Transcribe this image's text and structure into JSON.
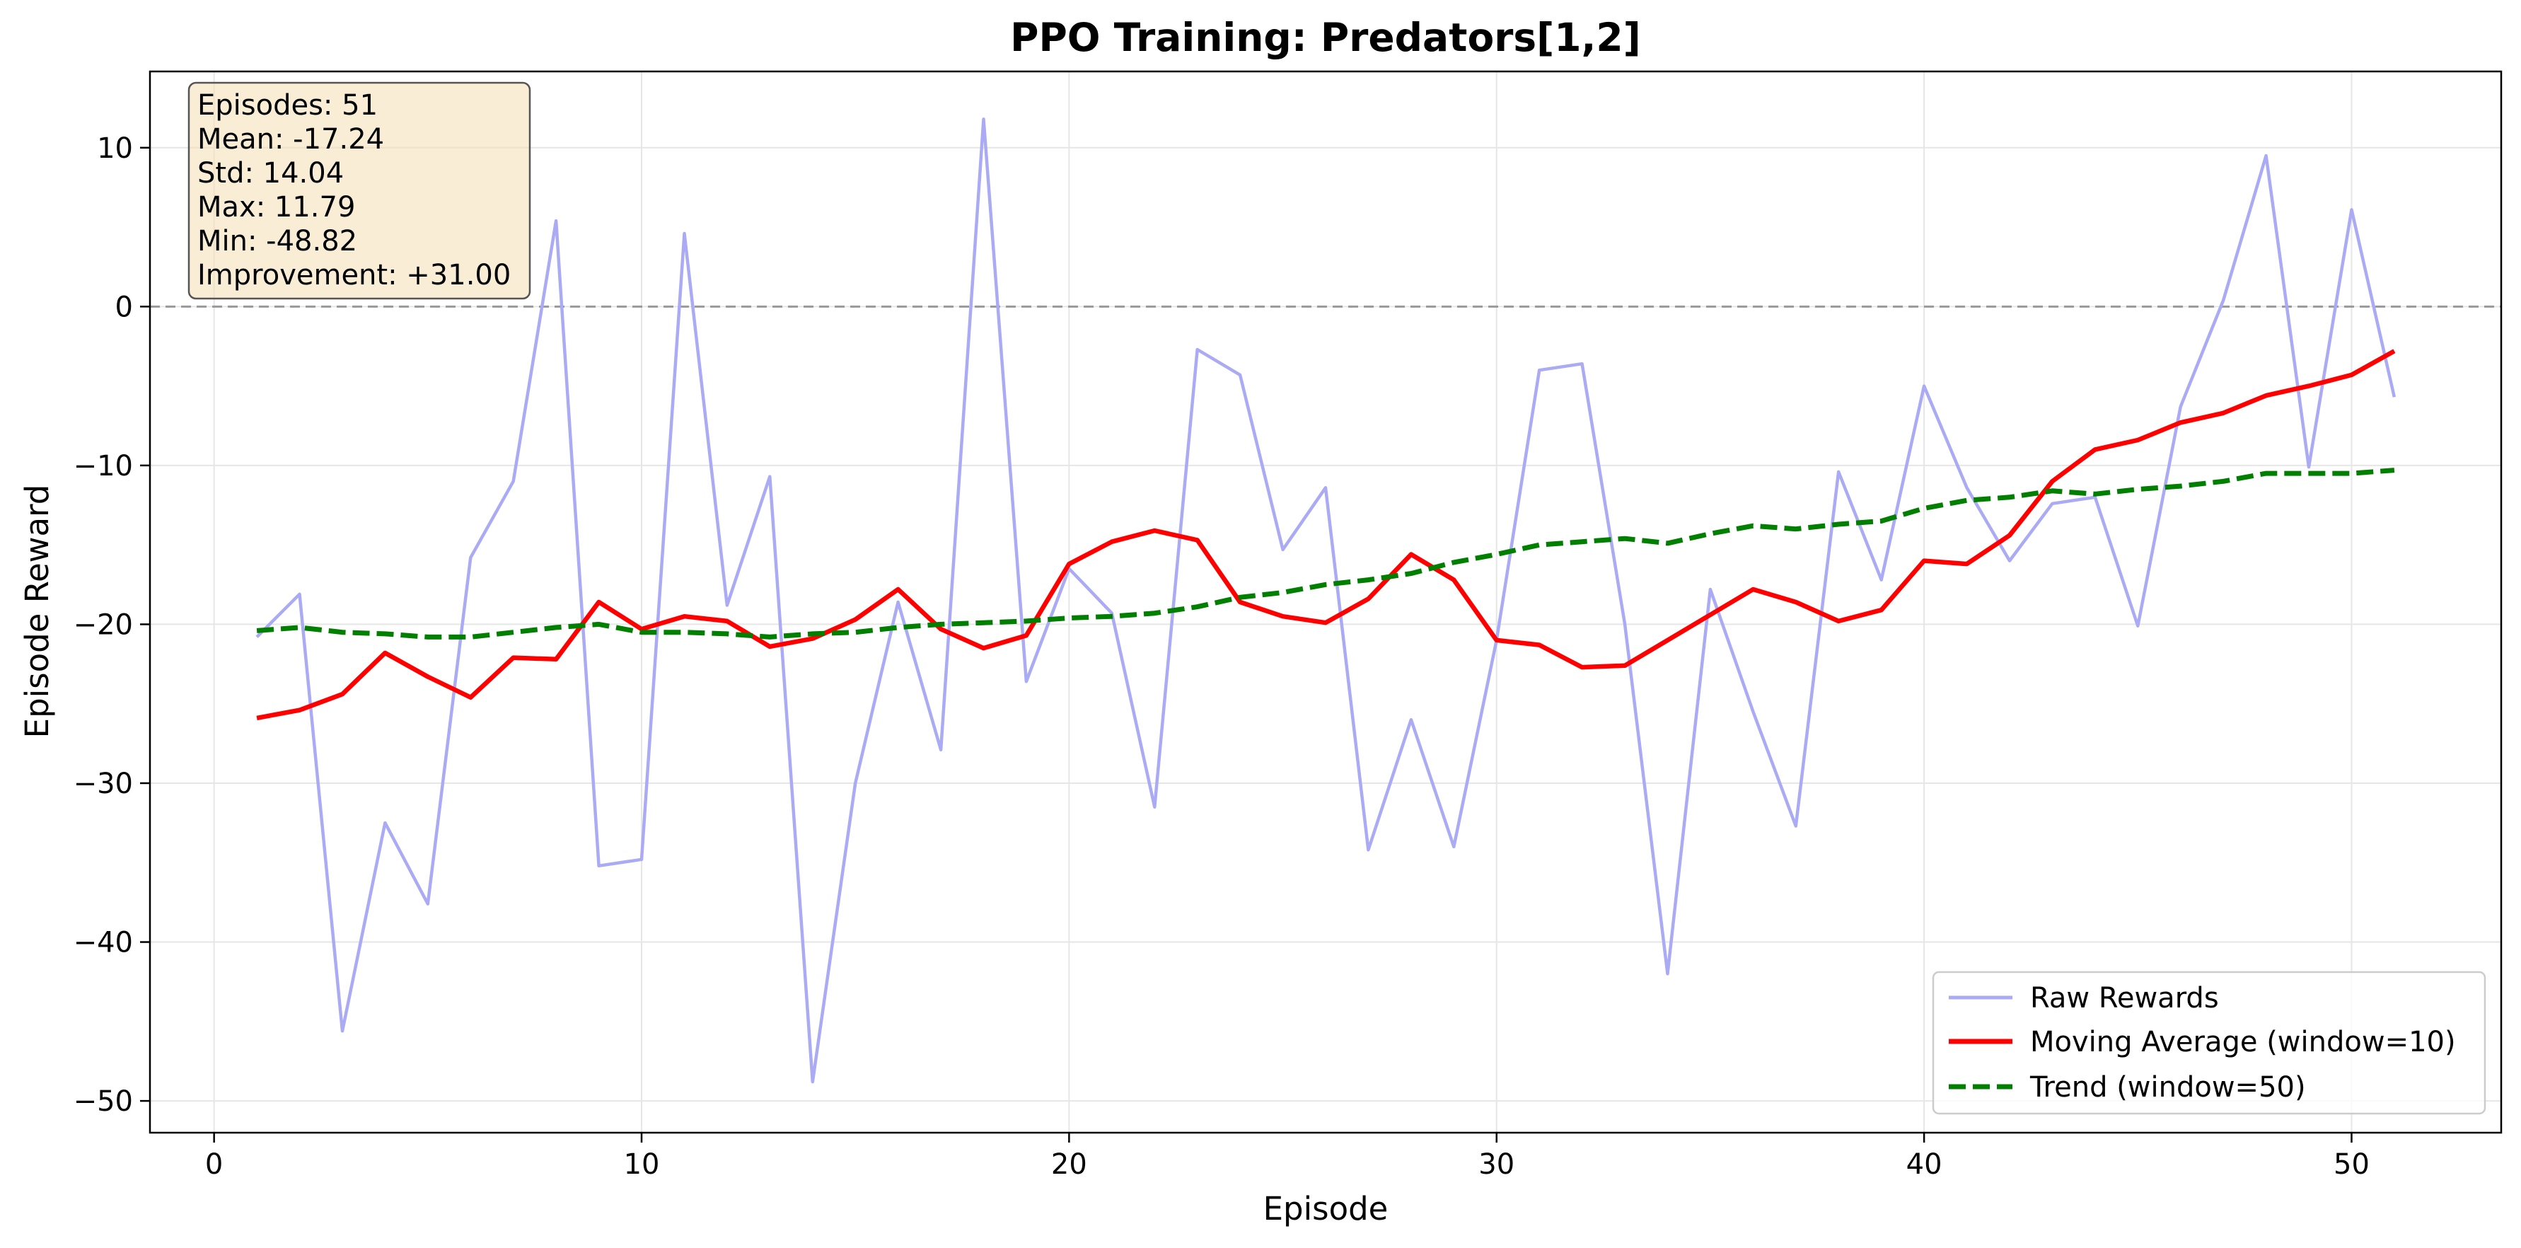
{
  "chart_data": {
    "type": "line",
    "title": "PPO Training: Predators[1,2]",
    "xlabel": "Episode",
    "ylabel": "Episode Reward",
    "xlim": [
      -1.5,
      53.5
    ],
    "ylim": [
      -52,
      14.8
    ],
    "xticks": [
      0,
      10,
      20,
      30,
      40,
      50
    ],
    "xtick_labels": [
      "0",
      "10",
      "20",
      "30",
      "40",
      "50"
    ],
    "yticks": [
      10,
      0,
      -10,
      -20,
      -30,
      -40,
      -50
    ],
    "ytick_labels": [
      "10",
      "0",
      "−10",
      "−20",
      "−30",
      "−40",
      "−50"
    ],
    "grid": true,
    "reference_line": {
      "y": 0,
      "style": "dashed",
      "color": "#999999"
    },
    "legend_position": "lower right",
    "stats_box": {
      "position": "top-left",
      "lines": [
        "Episodes: 51",
        "Mean: -17.24",
        "Std: 14.04",
        "Max: 11.79",
        "Min: -48.82",
        "Improvement: +31.00"
      ]
    },
    "series": [
      {
        "name": "Raw Rewards",
        "color": "#aaaaf5",
        "style": "solid",
        "x": [
          1,
          2,
          3,
          4,
          5,
          6,
          7,
          8,
          9,
          10,
          11,
          12,
          13,
          14,
          15,
          16,
          17,
          18,
          19,
          20,
          21,
          22,
          23,
          24,
          25,
          26,
          27,
          28,
          29,
          30,
          31,
          32,
          33,
          34,
          35,
          36,
          37,
          38,
          39,
          40,
          41,
          42,
          43,
          44,
          45,
          46,
          47,
          48,
          49,
          50,
          51
        ],
        "y": [
          -20.8,
          -18.1,
          -45.6,
          -32.5,
          -37.6,
          -15.8,
          -11.0,
          5.4,
          -35.2,
          -34.8,
          4.6,
          -18.8,
          -10.7,
          -48.8,
          -30.0,
          -18.6,
          -27.9,
          11.8,
          -23.6,
          -16.5,
          -19.3,
          -31.5,
          -2.7,
          -4.3,
          -15.3,
          -11.4,
          -34.2,
          -26.0,
          -34.0,
          -21.0,
          -4.0,
          -3.6,
          -20.0,
          -42.0,
          -17.8,
          -25.5,
          -32.7,
          -10.4,
          -17.2,
          -5.0,
          -11.4,
          -16.0,
          -12.4,
          -12.0,
          -20.1,
          -6.3,
          0.4,
          9.5,
          -10.1,
          6.1,
          -5.7
        ]
      },
      {
        "name": "Moving Average (window=10)",
        "color": "#ff0000",
        "style": "solid",
        "x": [
          1,
          2,
          3,
          4,
          5,
          6,
          7,
          8,
          9,
          10,
          11,
          12,
          13,
          14,
          15,
          16,
          17,
          18,
          19,
          20,
          21,
          22,
          23,
          24,
          25,
          26,
          27,
          28,
          29,
          30,
          31,
          32,
          33,
          34,
          35,
          36,
          37,
          38,
          39,
          40,
          41,
          42,
          43,
          44,
          45,
          46,
          47,
          48,
          49,
          50,
          51
        ],
        "y": [
          -25.9,
          -25.4,
          -24.4,
          -21.8,
          -23.3,
          -24.6,
          -22.1,
          -22.2,
          -18.6,
          -20.3,
          -19.5,
          -19.8,
          -21.4,
          -20.9,
          -19.7,
          -17.8,
          -20.3,
          -21.5,
          -20.7,
          -16.2,
          -14.8,
          -14.1,
          -14.7,
          -18.6,
          -19.5,
          -19.9,
          -18.4,
          -15.6,
          -17.2,
          -21.0,
          -21.3,
          -22.7,
          -22.6,
          -21.0,
          -19.4,
          -17.8,
          -18.6,
          -19.8,
          -19.1,
          -16.0,
          -16.2,
          -14.4,
          -11.0,
          -9.0,
          -8.4,
          -7.3,
          -6.7,
          -5.6,
          -5.0,
          -4.3,
          -2.8
        ]
      },
      {
        "name": "Trend (window=50)",
        "color": "#007f00",
        "style": "dashed",
        "x": [
          1,
          2,
          3,
          4,
          5,
          6,
          7,
          8,
          9,
          10,
          11,
          12,
          13,
          14,
          15,
          16,
          17,
          18,
          19,
          20,
          21,
          22,
          23,
          24,
          25,
          26,
          27,
          28,
          29,
          30,
          31,
          32,
          33,
          34,
          35,
          36,
          37,
          38,
          39,
          40,
          41,
          42,
          43,
          44,
          45,
          46,
          47,
          48,
          49,
          50,
          51
        ],
        "y": [
          -20.4,
          -20.2,
          -20.5,
          -20.6,
          -20.8,
          -20.8,
          -20.5,
          -20.2,
          -20.0,
          -20.5,
          -20.5,
          -20.6,
          -20.8,
          -20.6,
          -20.5,
          -20.2,
          -20.0,
          -19.9,
          -19.8,
          -19.6,
          -19.5,
          -19.3,
          -18.9,
          -18.3,
          -18.0,
          -17.5,
          -17.2,
          -16.8,
          -16.1,
          -15.6,
          -15.0,
          -14.8,
          -14.6,
          -14.9,
          -14.3,
          -13.8,
          -14.0,
          -13.7,
          -13.5,
          -12.7,
          -12.2,
          -12.0,
          -11.6,
          -11.8,
          -11.5,
          -11.3,
          -11.0,
          -10.5,
          -10.5,
          -10.5,
          -10.3
        ]
      }
    ]
  }
}
